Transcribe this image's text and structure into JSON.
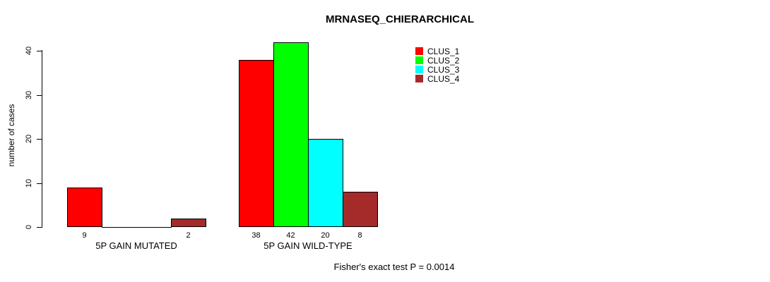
{
  "chart_data": {
    "type": "bar",
    "title": "MRNASEQ_CHIERARCHICAL",
    "xlabel": "",
    "ylabel": "number of cases",
    "ylim": [
      0,
      40
    ],
    "yticks": [
      0,
      10,
      20,
      30,
      40
    ],
    "categories": [
      "5P GAIN MUTATED",
      "5P GAIN WILD-TYPE"
    ],
    "series": [
      {
        "name": "CLUS_1",
        "color": "#ff0000",
        "values": [
          9,
          38
        ]
      },
      {
        "name": "CLUS_2",
        "color": "#00ff00",
        "values": [
          0,
          42
        ]
      },
      {
        "name": "CLUS_3",
        "color": "#00ffff",
        "values": [
          0,
          20
        ]
      },
      {
        "name": "CLUS_4",
        "color": "#a52a2a",
        "values": [
          2,
          8
        ]
      }
    ],
    "bar_value_labels": [
      [
        9,
        null,
        null,
        2
      ],
      [
        38,
        42,
        20,
        8
      ]
    ],
    "legend_position": "top-right",
    "grid": false,
    "annotation": "Fisher's exact test P = 0.0014"
  }
}
